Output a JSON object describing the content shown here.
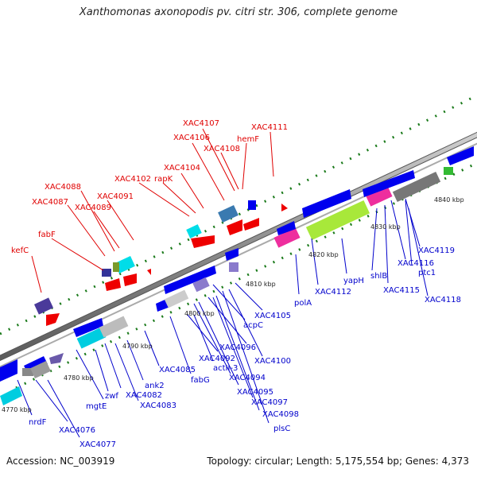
{
  "header": {
    "title": "Xanthomonas axonopodis pv. citri str. 306, complete genome"
  },
  "footer": {
    "accession": "Accession: NC_003919",
    "summary": "Topology: circular; Length: 5,175,554 bp; Genes: 4,373"
  },
  "colors": {
    "forward_label": "#e00000",
    "reverse_label": "#0000cc",
    "backbone": "#8c8c8c",
    "cds": "#0000ee",
    "rna": "#ff0000",
    "dots": "#1a7a1a"
  },
  "ticks": [
    "4770 kbp",
    "4780 kbp",
    "4790 kbp",
    "4800 kbp",
    "4810 kbp",
    "4820 kbp",
    "4830 kbp",
    "4840 kbp"
  ],
  "top_labels": [
    "kefC",
    "fabF",
    "XAC4087",
    "XAC4088",
    "XAC4089",
    "XAC4091",
    "XAC4102",
    "rapK",
    "XAC4104",
    "XAC4106",
    "XAC4107",
    "XAC4108",
    "hemF",
    "XAC4111"
  ],
  "bottom_labels": [
    "nrdF",
    "XAC4076",
    "XAC4077",
    "mgtE",
    "zwf",
    "XAC4082",
    "XAC4083",
    "ank2",
    "XAC4085",
    "fabG",
    "actII-3",
    "XAC4092",
    "XAC4094",
    "XAC4095",
    "XAC4096",
    "XAC4097",
    "XAC4098",
    "plsC",
    "XAC4100",
    "acpC",
    "XAC4105",
    "polA",
    "XAC4112",
    "yapH",
    "shlB",
    "XAC4115",
    "XAC4116",
    "ptc1",
    "XAC4118",
    "XAC4119"
  ]
}
